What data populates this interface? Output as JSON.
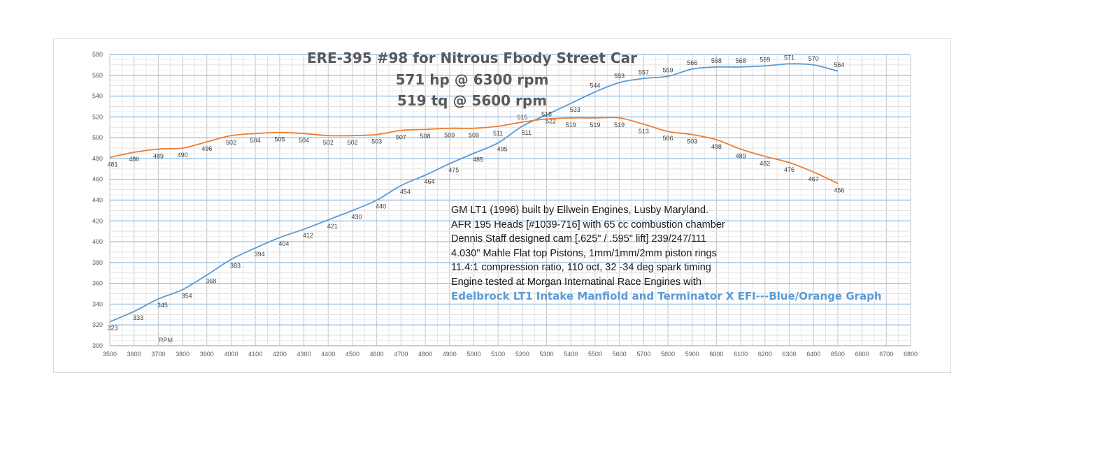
{
  "chart_data": {
    "type": "line",
    "title_lines": [
      "ERE-395 #98 for Nitrous Fbody Street Car",
      "571 hp @ 6300 rpm",
      "519 tq @ 5600 rpm"
    ],
    "xlabel": "RPM",
    "ylabel": "",
    "x_ticks": [
      3500,
      3600,
      3700,
      3800,
      3900,
      4000,
      4100,
      4200,
      4300,
      4400,
      4500,
      4600,
      4700,
      4800,
      4900,
      5000,
      5100,
      5200,
      5300,
      5400,
      5500,
      5600,
      5700,
      5800,
      5900,
      6000,
      6100,
      6200,
      6300,
      6400,
      6500,
      6600,
      6700,
      6800
    ],
    "y_ticks": [
      300,
      320,
      340,
      360,
      380,
      400,
      420,
      440,
      460,
      480,
      500,
      520,
      540,
      560,
      580
    ],
    "xlim": [
      3500,
      6800
    ],
    "ylim": [
      300,
      580
    ],
    "grid": true,
    "x": [
      3500,
      3600,
      3700,
      3800,
      3900,
      4000,
      4100,
      4200,
      4300,
      4400,
      4500,
      4600,
      4700,
      4800,
      4900,
      5000,
      5100,
      5200,
      5300,
      5400,
      5500,
      5600,
      5700,
      5800,
      5900,
      6000,
      6100,
      6200,
      6300,
      6400,
      6500
    ],
    "series": [
      {
        "color": "#5b9bd5",
        "values": [
          323,
          333,
          345,
          354,
          368,
          383,
          394,
          404,
          412,
          421,
          430,
          440,
          454,
          464,
          475,
          485,
          495,
          511,
          522,
          533,
          544,
          553,
          557,
          559,
          566,
          568,
          568,
          569,
          571,
          570,
          564
        ]
      },
      {
        "color": "#ed7d31",
        "values": [
          481,
          486,
          489,
          490,
          496,
          502,
          504,
          505,
          504,
          502,
          502,
          503,
          507,
          508,
          509,
          509,
          511,
          515,
          518,
          519,
          519,
          519,
          513,
          506,
          503,
          498,
          489,
          482,
          476,
          467,
          456
        ]
      }
    ],
    "notes": [
      "GM LT1 (1996) built by Ellwein Engines, Lusby Maryland.",
      "AFR 195 Heads [#1039-716] with 65 cc combustion chamber",
      "Dennis Staff designed cam [.625\" / .595\" lift] 239/247/111",
      "4.030\" Mahle Flat top Pistons, 1mm/1mm/2mm piston rings",
      "11.4:1 compression ratio, 110 oct, 32 -34 deg spark timing",
      "Engine tested at Morgan Internatinal Race Engines with"
    ],
    "highlight_note": "Edelbrock LT1 Intake Manfiold and Terminator X EFI---Blue/Orange Graph"
  }
}
